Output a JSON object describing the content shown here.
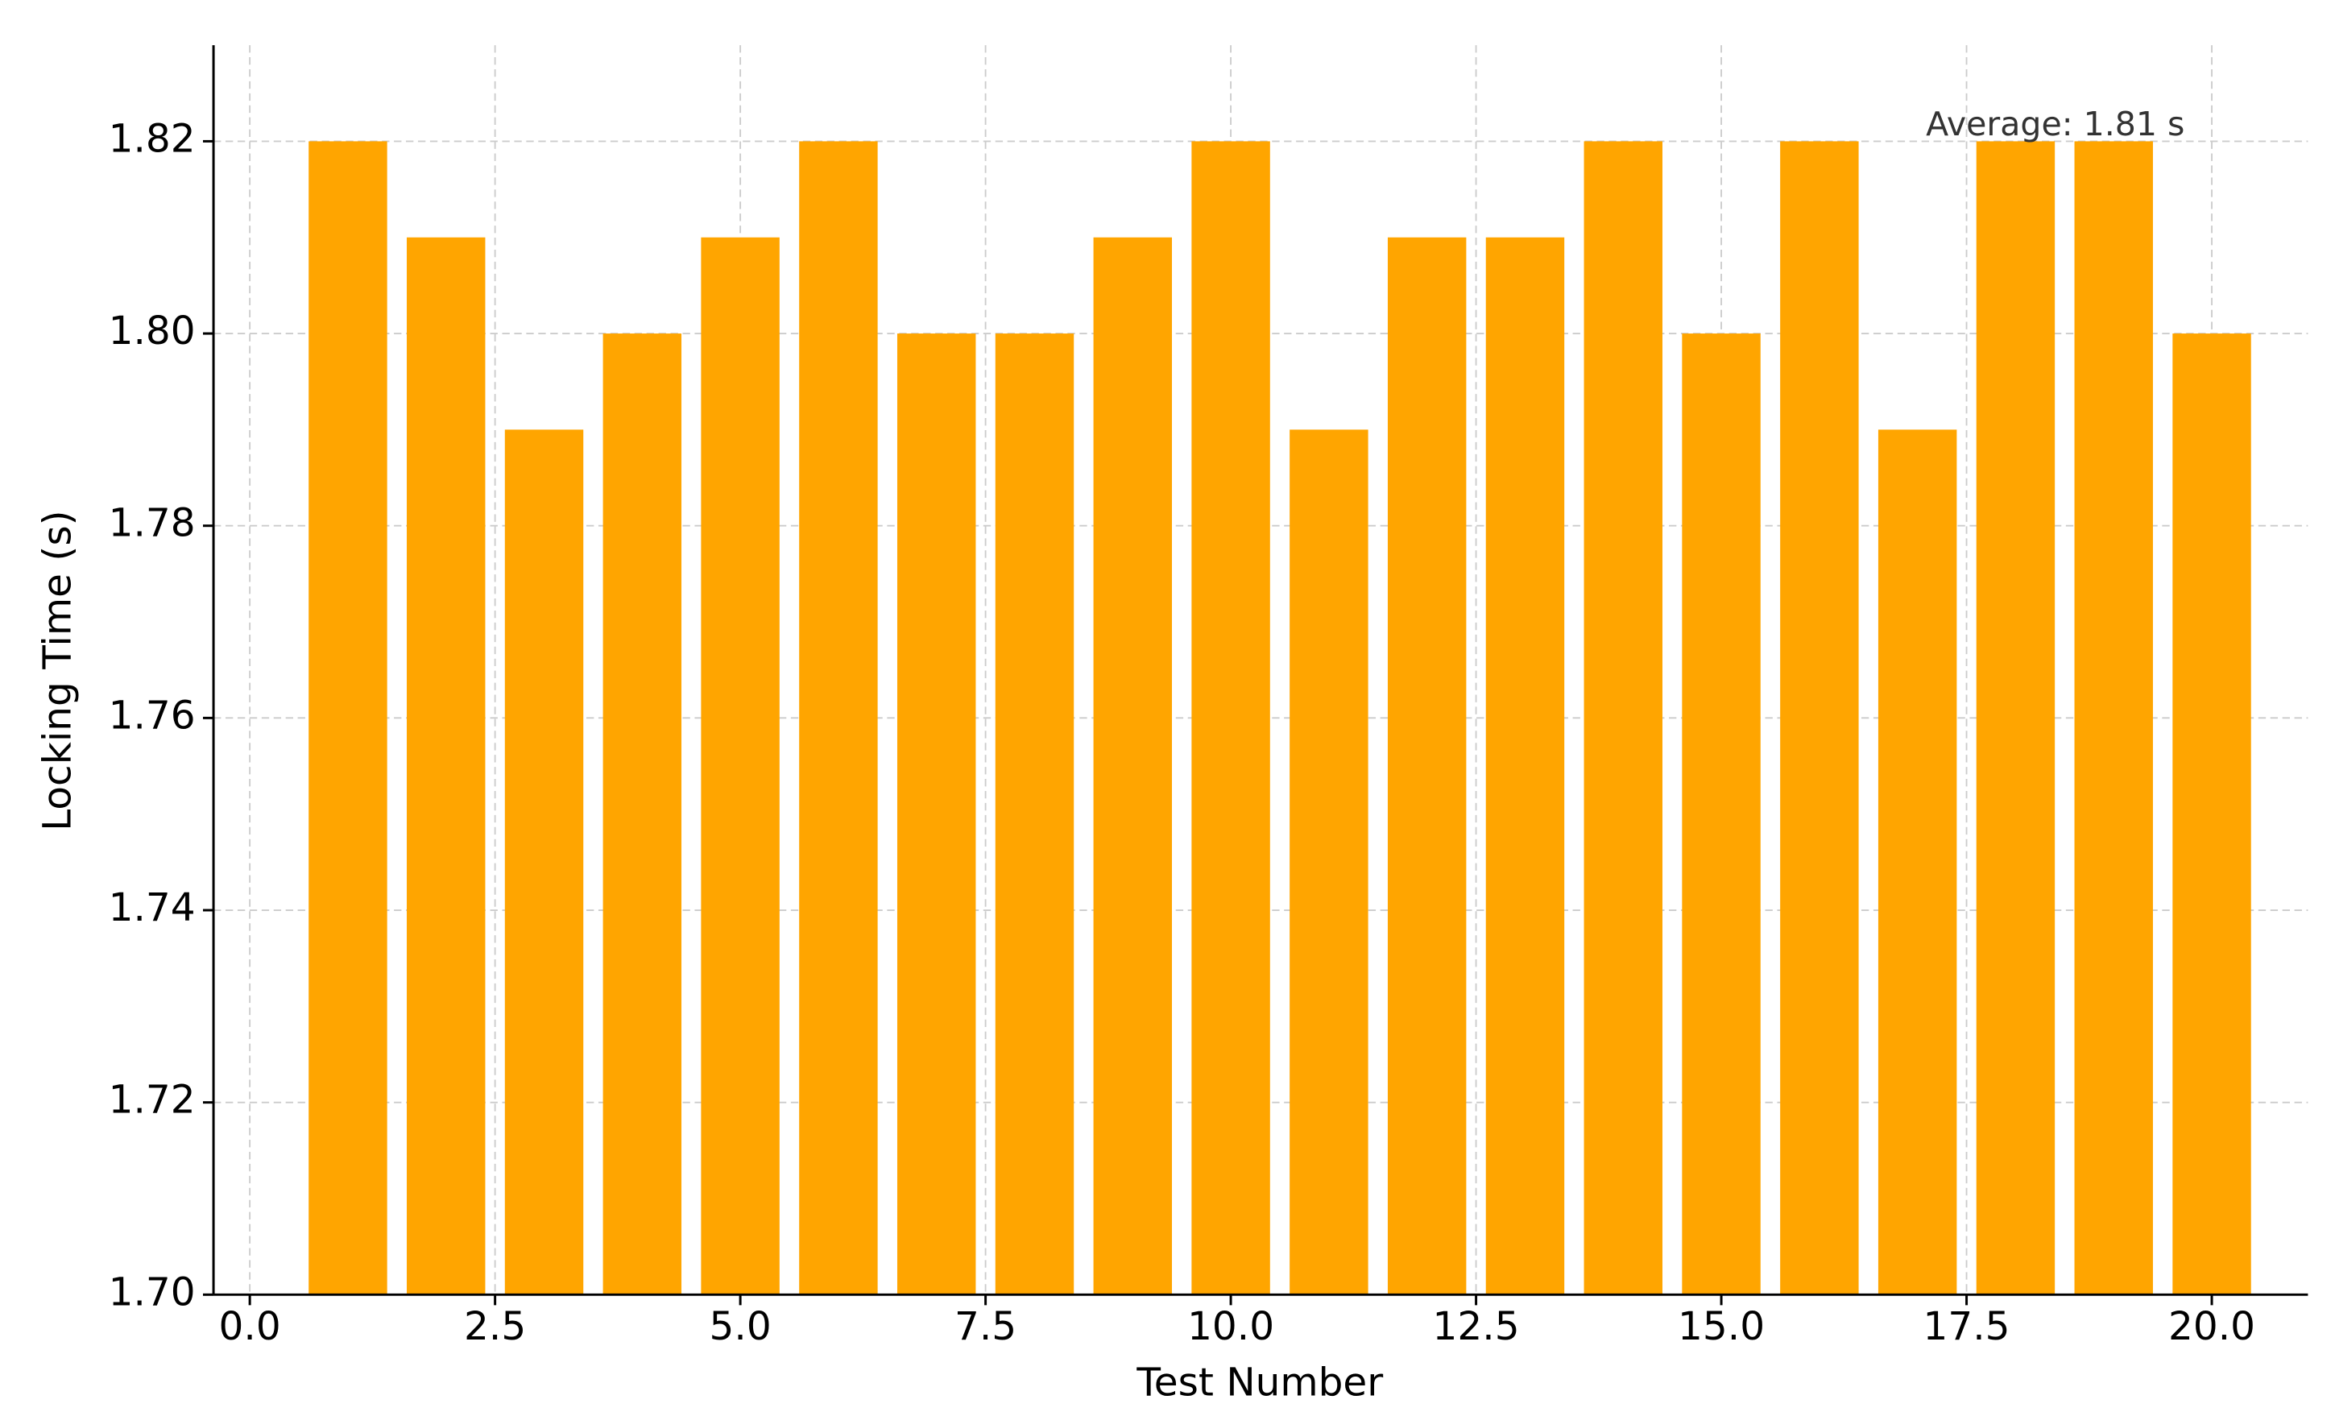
{
  "chart_data": {
    "type": "bar",
    "x_label": "Test Number",
    "y_label": "Locking Time (s)",
    "annotation": "Average: 1.81 s",
    "x": [
      1,
      2,
      3,
      4,
      5,
      6,
      7,
      8,
      9,
      10,
      11,
      12,
      13,
      14,
      15,
      16,
      17,
      18,
      19,
      20
    ],
    "values": [
      1.82,
      1.81,
      1.79,
      1.8,
      1.81,
      1.82,
      1.8,
      1.8,
      1.81,
      1.82,
      1.79,
      1.81,
      1.81,
      1.82,
      1.8,
      1.82,
      1.79,
      1.82,
      1.82,
      1.8
    ],
    "color": "#ffa500",
    "xlim": [
      -0.37,
      20.98
    ],
    "ylim": [
      1.7,
      1.83
    ],
    "xticks": [
      {
        "value": 0,
        "label": "0.0"
      },
      {
        "value": 2.5,
        "label": "2.5"
      },
      {
        "value": 5,
        "label": "5.0"
      },
      {
        "value": 7.5,
        "label": "7.5"
      },
      {
        "value": 10,
        "label": "10.0"
      },
      {
        "value": 12.5,
        "label": "12.5"
      },
      {
        "value": 15,
        "label": "15.0"
      },
      {
        "value": 17.5,
        "label": "17.5"
      },
      {
        "value": 20,
        "label": "20.0"
      }
    ],
    "yticks": [
      {
        "value": 1.7,
        "label": "1.70"
      },
      {
        "value": 1.72,
        "label": "1.72"
      },
      {
        "value": 1.74,
        "label": "1.74"
      },
      {
        "value": 1.76,
        "label": "1.76"
      },
      {
        "value": 1.78,
        "label": "1.78"
      },
      {
        "value": 1.8,
        "label": "1.80"
      },
      {
        "value": 1.82,
        "label": "1.82"
      }
    ],
    "grid": true
  }
}
